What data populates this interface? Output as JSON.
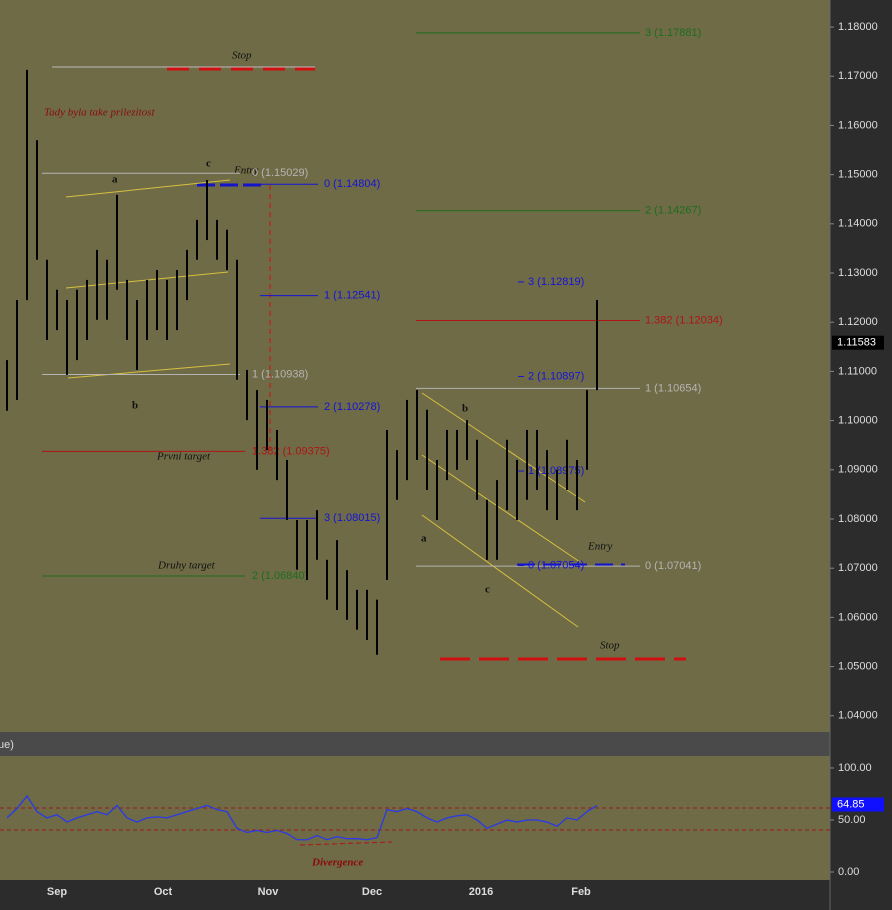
{
  "chart_data": [
    {
      "type": "ohlc",
      "high": [
        1.1123,
        1.1245,
        1.1713,
        1.157,
        1.1327,
        1.1266,
        1.1245,
        1.1266,
        1.1286,
        1.1347,
        1.1327,
        1.1459,
        1.1286,
        1.1245,
        1.1286,
        1.1306,
        1.1286,
        1.1306,
        1.1347,
        1.1408,
        1.1489,
        1.1408,
        1.1388,
        1.1327,
        1.1103,
        1.1062,
        1.1042,
        1.0981,
        1.092,
        1.0798,
        1.0798,
        1.0818,
        1.0717,
        1.0757,
        1.0696,
        1.0656,
        1.0656,
        1.0636,
        1.0981,
        1.094,
        1.1042,
        1.1062,
        1.1022,
        1.092,
        1.0981,
        1.0981,
        1.1001,
        1.0961,
        1.0839,
        1.0879,
        1.0961,
        1.092,
        1.0981,
        1.0981,
        1.094,
        1.09,
        1.0961,
        1.092,
        1.1062,
        1.1245
      ],
      "low": [
        1.102,
        1.1042,
        1.1245,
        1.1327,
        1.1164,
        1.1184,
        1.1093,
        1.1123,
        1.1164,
        1.1205,
        1.1205,
        1.1266,
        1.1164,
        1.1103,
        1.1164,
        1.1184,
        1.1164,
        1.1184,
        1.1245,
        1.1327,
        1.1367,
        1.1327,
        1.1306,
        1.1083,
        1.1001,
        1.09,
        1.094,
        1.0879,
        1.0798,
        1.0697,
        1.0676,
        1.0717,
        1.0636,
        1.0615,
        1.0595,
        1.0575,
        1.0554,
        1.0524,
        1.0676,
        1.0839,
        1.0879,
        1.092,
        1.0859,
        1.0798,
        1.0879,
        1.09,
        1.092,
        1.0839,
        1.0717,
        1.0717,
        1.0818,
        1.0798,
        1.0839,
        1.0859,
        1.0818,
        1.0798,
        1.0859,
        1.0818,
        1.09,
        1.1062
      ],
      "color": "#000000",
      "ylim": [
        1.0367,
        1.1855
      ],
      "yticks": [
        {
          "value": 1.04,
          "label": "1.04000"
        },
        {
          "value": 1.05,
          "label": "1.05000"
        },
        {
          "value": 1.06,
          "label": "1.06000"
        },
        {
          "value": 1.07,
          "label": "1.07000"
        },
        {
          "value": 1.08,
          "label": "1.08000"
        },
        {
          "value": 1.09,
          "label": "1.09000"
        },
        {
          "value": 1.1,
          "label": "1.10000"
        },
        {
          "value": 1.11,
          "label": "1.11000"
        },
        {
          "value": 1.12,
          "label": "1.12000"
        },
        {
          "value": 1.13,
          "label": "1.13000"
        },
        {
          "value": 1.14,
          "label": "1.14000"
        },
        {
          "value": 1.15,
          "label": "1.15000"
        },
        {
          "value": 1.16,
          "label": "1.16000"
        },
        {
          "value": 1.17,
          "label": "1.17000"
        },
        {
          "value": 1.18,
          "label": "1.18000"
        }
      ],
      "last_price": 1.11583,
      "levels": [
        {
          "value": 1.17881,
          "label": "3 (1.17881)",
          "color": "#1d6e1d"
        },
        {
          "value": 1.14267,
          "label": "2 (1.14267)",
          "color": "#1d6e1d"
        },
        {
          "value": 1.12034,
          "label": "1.382 (1.12034)",
          "color": "#b01414"
        },
        {
          "value": 1.10654,
          "label": "1 (1.10654)",
          "color": "#b4b4b4"
        },
        {
          "value": 1.07041,
          "label": "0 (1.07041)",
          "color": "#b4b4b4"
        },
        {
          "value": 1.14804,
          "label": "0 (1.14804)",
          "color": "#1414d8"
        },
        {
          "value": 1.12541,
          "label": "1 (1.12541)",
          "color": "#1414d8"
        },
        {
          "value": 1.10278,
          "label": "2 (1.10278)",
          "color": "#1414d8"
        },
        {
          "value": 1.08015,
          "label": "3 (1.08015)",
          "color": "#1414d8"
        },
        {
          "value": 1.12819,
          "label": "3 (1.12819)",
          "color": "#1414d8"
        },
        {
          "value": 1.10897,
          "label": "2 (1.10897)",
          "color": "#1414d8"
        },
        {
          "value": 1.08975,
          "label": "1 (1.08975)",
          "color": "#1414d8"
        },
        {
          "value": 1.07054,
          "label": "0 (1.07054)",
          "color": "#1414d8"
        },
        {
          "value": 1.09375,
          "label": "1.382 (1.09375)",
          "color": "#b01414"
        },
        {
          "value": 1.0684,
          "label": "2 (1.06840)",
          "color": "#1d6e1d"
        },
        {
          "value": 1.10938,
          "label": "1 (1.10938)",
          "color": "#b4b4b4"
        },
        {
          "value": 1.15029,
          "label": "0 (1.15029)",
          "color": "#b4b4b4"
        }
      ],
      "annotations": [
        "Stop",
        "Tady byla  take prilezitost",
        "a",
        "c",
        "b",
        "Entry",
        "Prvni target",
        "Druhy target",
        "a",
        "b",
        "c",
        "Entry",
        "Stop"
      ]
    },
    {
      "type": "line",
      "tab_label": "ue)",
      "values": [
        52,
        61,
        73,
        58,
        52,
        55,
        48,
        52,
        55,
        58,
        55,
        64,
        52,
        48,
        52,
        53,
        52,
        55,
        58,
        61,
        64,
        60,
        58,
        42,
        38,
        40,
        38,
        40,
        37,
        31,
        31,
        35,
        31,
        34,
        32,
        32,
        31,
        33,
        60,
        58,
        61,
        58,
        52,
        48,
        52,
        54,
        55,
        50,
        42,
        46,
        50,
        48,
        50,
        50,
        48,
        44,
        52,
        50,
        58,
        64
      ],
      "color": "#2a3ae8",
      "ylim": [
        -7.7,
        111.5
      ],
      "yticks": [
        {
          "value": 0,
          "label": "0.00"
        },
        {
          "value": 50,
          "label": "50.00"
        },
        {
          "value": 100,
          "label": "100.00"
        }
      ],
      "levels": [
        61.5,
        40.4
      ],
      "last_value": 64.85,
      "annotation": "Divergence",
      "x_labels": [
        "Sep",
        "Oct",
        "Nov",
        "Dec",
        "2016",
        "Feb"
      ]
    }
  ]
}
